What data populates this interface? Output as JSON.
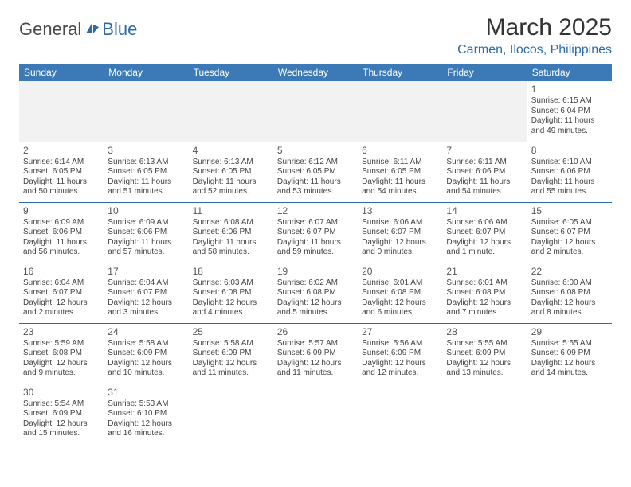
{
  "logo": {
    "text_general": "General",
    "text_blue": "Blue"
  },
  "header": {
    "month_title": "March 2025",
    "location": "Carmen, Ilocos, Philippines"
  },
  "colors": {
    "header_bg": "#3b79b7",
    "header_text": "#ffffff",
    "cell_border": "#2e6da4",
    "text": "#444444",
    "title": "#333333",
    "location": "#2e6da4",
    "empty_bg": "#f2f2f2"
  },
  "daynames": [
    "Sunday",
    "Monday",
    "Tuesday",
    "Wednesday",
    "Thursday",
    "Friday",
    "Saturday"
  ],
  "weeks": [
    [
      {},
      {},
      {},
      {},
      {},
      {},
      {
        "n": "1",
        "sr": "Sunrise: 6:15 AM",
        "ss": "Sunset: 6:04 PM",
        "dl": "Daylight: 11 hours and 49 minutes."
      }
    ],
    [
      {
        "n": "2",
        "sr": "Sunrise: 6:14 AM",
        "ss": "Sunset: 6:05 PM",
        "dl": "Daylight: 11 hours and 50 minutes."
      },
      {
        "n": "3",
        "sr": "Sunrise: 6:13 AM",
        "ss": "Sunset: 6:05 PM",
        "dl": "Daylight: 11 hours and 51 minutes."
      },
      {
        "n": "4",
        "sr": "Sunrise: 6:13 AM",
        "ss": "Sunset: 6:05 PM",
        "dl": "Daylight: 11 hours and 52 minutes."
      },
      {
        "n": "5",
        "sr": "Sunrise: 6:12 AM",
        "ss": "Sunset: 6:05 PM",
        "dl": "Daylight: 11 hours and 53 minutes."
      },
      {
        "n": "6",
        "sr": "Sunrise: 6:11 AM",
        "ss": "Sunset: 6:05 PM",
        "dl": "Daylight: 11 hours and 54 minutes."
      },
      {
        "n": "7",
        "sr": "Sunrise: 6:11 AM",
        "ss": "Sunset: 6:06 PM",
        "dl": "Daylight: 11 hours and 54 minutes."
      },
      {
        "n": "8",
        "sr": "Sunrise: 6:10 AM",
        "ss": "Sunset: 6:06 PM",
        "dl": "Daylight: 11 hours and 55 minutes."
      }
    ],
    [
      {
        "n": "9",
        "sr": "Sunrise: 6:09 AM",
        "ss": "Sunset: 6:06 PM",
        "dl": "Daylight: 11 hours and 56 minutes."
      },
      {
        "n": "10",
        "sr": "Sunrise: 6:09 AM",
        "ss": "Sunset: 6:06 PM",
        "dl": "Daylight: 11 hours and 57 minutes."
      },
      {
        "n": "11",
        "sr": "Sunrise: 6:08 AM",
        "ss": "Sunset: 6:06 PM",
        "dl": "Daylight: 11 hours and 58 minutes."
      },
      {
        "n": "12",
        "sr": "Sunrise: 6:07 AM",
        "ss": "Sunset: 6:07 PM",
        "dl": "Daylight: 11 hours and 59 minutes."
      },
      {
        "n": "13",
        "sr": "Sunrise: 6:06 AM",
        "ss": "Sunset: 6:07 PM",
        "dl": "Daylight: 12 hours and 0 minutes."
      },
      {
        "n": "14",
        "sr": "Sunrise: 6:06 AM",
        "ss": "Sunset: 6:07 PM",
        "dl": "Daylight: 12 hours and 1 minute."
      },
      {
        "n": "15",
        "sr": "Sunrise: 6:05 AM",
        "ss": "Sunset: 6:07 PM",
        "dl": "Daylight: 12 hours and 2 minutes."
      }
    ],
    [
      {
        "n": "16",
        "sr": "Sunrise: 6:04 AM",
        "ss": "Sunset: 6:07 PM",
        "dl": "Daylight: 12 hours and 2 minutes."
      },
      {
        "n": "17",
        "sr": "Sunrise: 6:04 AM",
        "ss": "Sunset: 6:07 PM",
        "dl": "Daylight: 12 hours and 3 minutes."
      },
      {
        "n": "18",
        "sr": "Sunrise: 6:03 AM",
        "ss": "Sunset: 6:08 PM",
        "dl": "Daylight: 12 hours and 4 minutes."
      },
      {
        "n": "19",
        "sr": "Sunrise: 6:02 AM",
        "ss": "Sunset: 6:08 PM",
        "dl": "Daylight: 12 hours and 5 minutes."
      },
      {
        "n": "20",
        "sr": "Sunrise: 6:01 AM",
        "ss": "Sunset: 6:08 PM",
        "dl": "Daylight: 12 hours and 6 minutes."
      },
      {
        "n": "21",
        "sr": "Sunrise: 6:01 AM",
        "ss": "Sunset: 6:08 PM",
        "dl": "Daylight: 12 hours and 7 minutes."
      },
      {
        "n": "22",
        "sr": "Sunrise: 6:00 AM",
        "ss": "Sunset: 6:08 PM",
        "dl": "Daylight: 12 hours and 8 minutes."
      }
    ],
    [
      {
        "n": "23",
        "sr": "Sunrise: 5:59 AM",
        "ss": "Sunset: 6:08 PM",
        "dl": "Daylight: 12 hours and 9 minutes."
      },
      {
        "n": "24",
        "sr": "Sunrise: 5:58 AM",
        "ss": "Sunset: 6:09 PM",
        "dl": "Daylight: 12 hours and 10 minutes."
      },
      {
        "n": "25",
        "sr": "Sunrise: 5:58 AM",
        "ss": "Sunset: 6:09 PM",
        "dl": "Daylight: 12 hours and 11 minutes."
      },
      {
        "n": "26",
        "sr": "Sunrise: 5:57 AM",
        "ss": "Sunset: 6:09 PM",
        "dl": "Daylight: 12 hours and 11 minutes."
      },
      {
        "n": "27",
        "sr": "Sunrise: 5:56 AM",
        "ss": "Sunset: 6:09 PM",
        "dl": "Daylight: 12 hours and 12 minutes."
      },
      {
        "n": "28",
        "sr": "Sunrise: 5:55 AM",
        "ss": "Sunset: 6:09 PM",
        "dl": "Daylight: 12 hours and 13 minutes."
      },
      {
        "n": "29",
        "sr": "Sunrise: 5:55 AM",
        "ss": "Sunset: 6:09 PM",
        "dl": "Daylight: 12 hours and 14 minutes."
      }
    ],
    [
      {
        "n": "30",
        "sr": "Sunrise: 5:54 AM",
        "ss": "Sunset: 6:09 PM",
        "dl": "Daylight: 12 hours and 15 minutes."
      },
      {
        "n": "31",
        "sr": "Sunrise: 5:53 AM",
        "ss": "Sunset: 6:10 PM",
        "dl": "Daylight: 12 hours and 16 minutes."
      },
      {},
      {},
      {},
      {},
      {}
    ]
  ]
}
